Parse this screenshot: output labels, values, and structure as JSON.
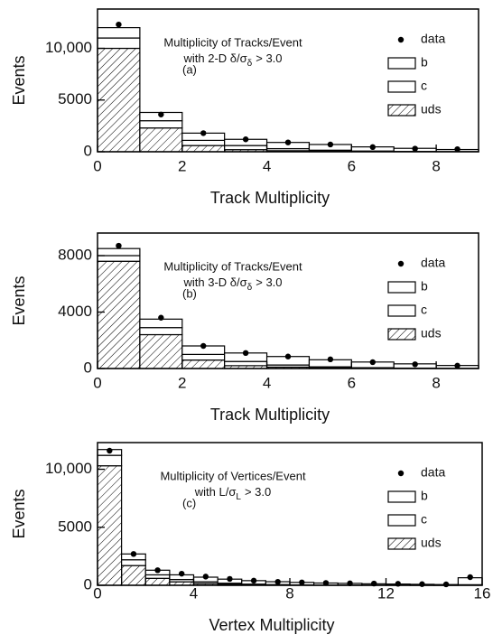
{
  "chart_data": [
    {
      "type": "histogram",
      "x_label": "Track Multiplicity",
      "y_label": "Events",
      "annotation": [
        "Multiplicity of Tracks/Event",
        "with 2-D δ/σ",
        "δ",
        "> 3.0"
      ],
      "panel_label": "(a)",
      "bins": [
        0,
        1,
        2,
        3,
        4,
        5,
        6,
        7,
        8,
        9
      ],
      "series": [
        {
          "name": "uds",
          "color": "#000000",
          "hatch": true,
          "values": [
            10000,
            2300,
            600,
            200,
            100,
            50,
            20,
            10,
            5
          ]
        },
        {
          "name": "c",
          "color": "#000000",
          "hatch": false,
          "values": [
            1000,
            700,
            500,
            400,
            200,
            100,
            50,
            20,
            10
          ]
        },
        {
          "name": "b",
          "color": "#000000",
          "hatch": false,
          "values": [
            1000,
            800,
            700,
            600,
            600,
            550,
            400,
            300,
            200
          ]
        }
      ],
      "points": {
        "name": "data",
        "color": "#000000",
        "values": [
          12300,
          3600,
          1800,
          1200,
          900,
          700,
          450,
          300,
          250
        ]
      },
      "xlim": [
        0,
        9
      ],
      "xticks": [
        0,
        2,
        4,
        6,
        8
      ],
      "ylim": [
        0,
        13800
      ],
      "yticks": [
        0,
        5000,
        {
          "value": 10000,
          "label": "10,000"
        }
      ]
    },
    {
      "type": "histogram",
      "x_label": "Track Multiplicity",
      "y_label": "Events",
      "annotation": [
        "Multiplicity of Tracks/Event",
        "with 3-D δ/σ",
        "δ",
        "> 3.0"
      ],
      "panel_label": "(b)",
      "bins": [
        0,
        1,
        2,
        3,
        4,
        5,
        6,
        7,
        8,
        9
      ],
      "series": [
        {
          "name": "uds",
          "color": "#000000",
          "hatch": true,
          "values": [
            7600,
            2400,
            600,
            200,
            100,
            40,
            20,
            10,
            5
          ]
        },
        {
          "name": "c",
          "color": "#000000",
          "hatch": false,
          "values": [
            400,
            500,
            400,
            300,
            150,
            80,
            40,
            20,
            10
          ]
        },
        {
          "name": "b",
          "color": "#000000",
          "hatch": false,
          "values": [
            500,
            600,
            600,
            600,
            600,
            500,
            400,
            300,
            200
          ]
        }
      ],
      "points": {
        "name": "data",
        "color": "#000000",
        "values": [
          8700,
          3600,
          1600,
          1100,
          850,
          650,
          450,
          300,
          200
        ]
      },
      "xlim": [
        0,
        9
      ],
      "xticks": [
        0,
        2,
        4,
        6,
        8
      ],
      "ylim": [
        0,
        9600
      ],
      "yticks": [
        0,
        4000,
        8000
      ]
    },
    {
      "type": "histogram",
      "x_label": "Vertex Multiplicity",
      "y_label": "Events",
      "annotation": [
        "Multiplicity of Vertices/Event",
        "with L/σ",
        "L",
        "> 3.0"
      ],
      "panel_label": "(c)",
      "bins": [
        0,
        1,
        2,
        3,
        4,
        5,
        6,
        7,
        8,
        9,
        10,
        11,
        12,
        13,
        14,
        15,
        16
      ],
      "series": [
        {
          "name": "uds",
          "color": "#000000",
          "hatch": true,
          "values": [
            10300,
            1700,
            600,
            300,
            150,
            80,
            40,
            20,
            10,
            5,
            5,
            2,
            2,
            1,
            1,
            20
          ]
        },
        {
          "name": "c",
          "color": "#000000",
          "hatch": false,
          "values": [
            900,
            500,
            300,
            200,
            150,
            100,
            60,
            40,
            20,
            10,
            10,
            5,
            5,
            3,
            2,
            30
          ]
        },
        {
          "name": "b",
          "color": "#000000",
          "hatch": false,
          "values": [
            500,
            500,
            400,
            400,
            400,
            350,
            300,
            250,
            220,
            180,
            150,
            120,
            100,
            80,
            60,
            600
          ]
        }
      ],
      "points": {
        "name": "data",
        "color": "#000000",
        "values": [
          11600,
          2700,
          1300,
          1000,
          750,
          550,
          400,
          300,
          250,
          200,
          170,
          150,
          130,
          100,
          80,
          700
        ]
      },
      "xlim": [
        0,
        16
      ],
      "xticks": [
        0,
        4,
        8,
        12,
        16
      ],
      "ylim": [
        0,
        12300
      ],
      "yticks": [
        0,
        5000,
        {
          "value": 10000,
          "label": "10,000"
        }
      ]
    }
  ]
}
